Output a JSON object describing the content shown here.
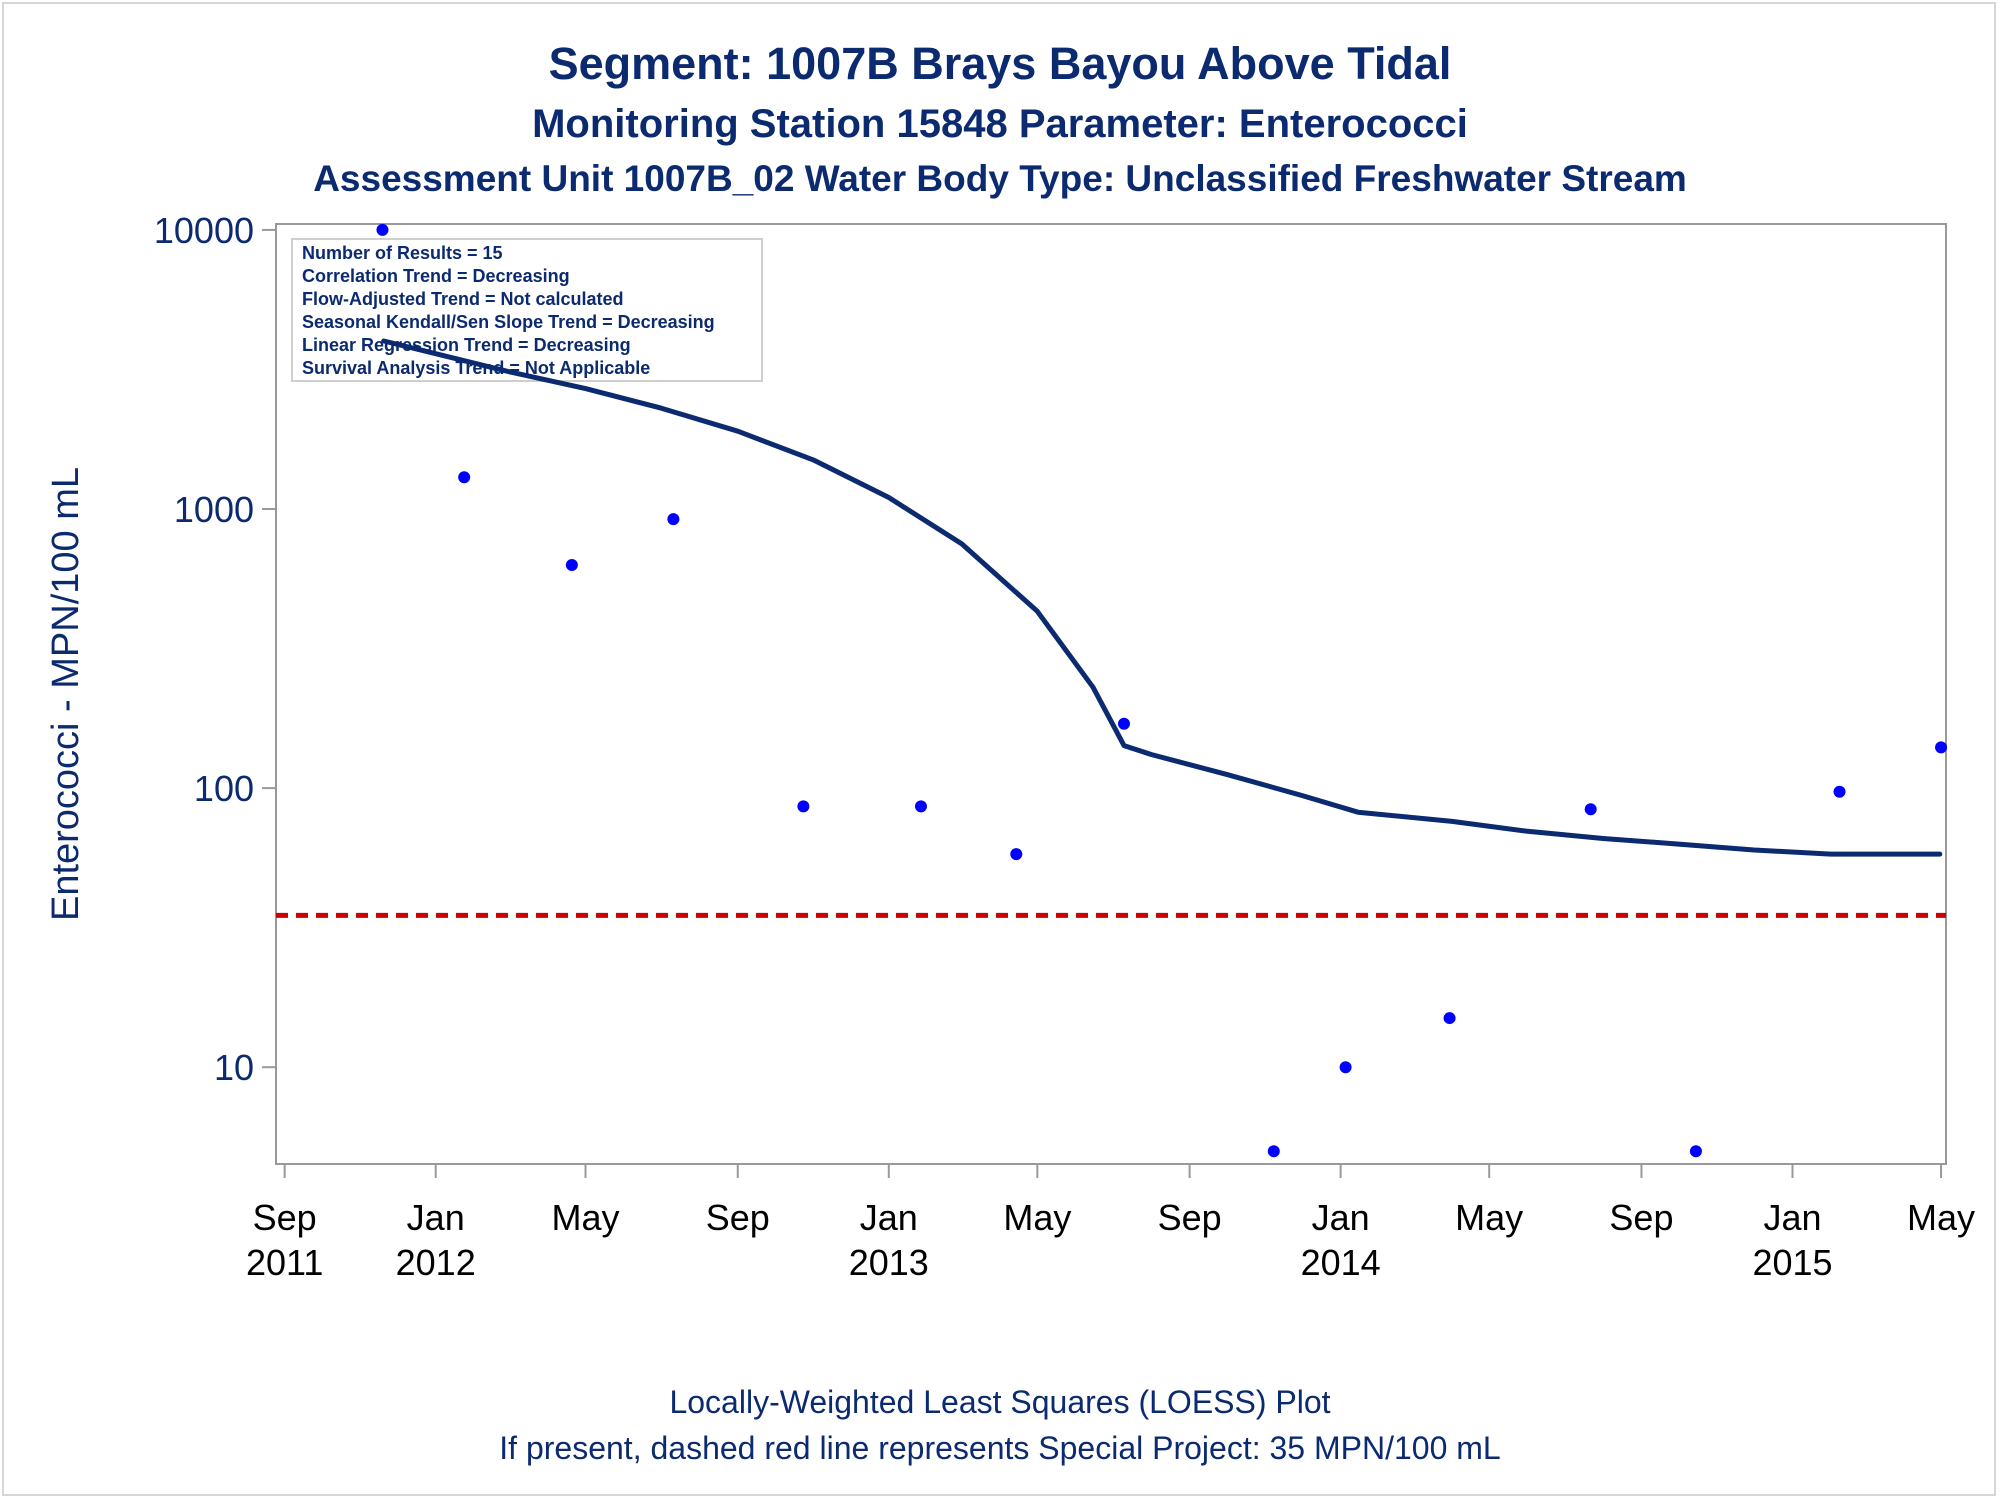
{
  "colors": {
    "title": "#0b2a6f",
    "axis": "#999999",
    "loess": "#0b2a6f",
    "points": "#0000ff",
    "threshold": "#cc0000"
  },
  "chart_data": {
    "type": "scatter",
    "title": "Segment: 1007B  Brays Bayou Above Tidal",
    "subtitle": "Monitoring Station 15848 Parameter: Enterococci",
    "subtitle2": "Assessment Unit 1007B_02   Water Body Type: Unclassified Freshwater Stream",
    "xlabel": "",
    "ylabel": "Enterococci - MPN/100 mL",
    "yscale": "log",
    "ylim": [
      4.5,
      10500
    ],
    "xlim": [
      "2011-08-25",
      "2015-05-05"
    ],
    "y_ticks": [
      {
        "value": 10,
        "label": "10"
      },
      {
        "value": 100,
        "label": "100"
      },
      {
        "value": 1000,
        "label": "1000"
      },
      {
        "value": 10000,
        "label": "10000"
      }
    ],
    "x_ticks": [
      {
        "date": "2011-09-01",
        "month": "Sep",
        "year": "2011"
      },
      {
        "date": "2012-01-01",
        "month": "Jan",
        "year": "2012"
      },
      {
        "date": "2012-05-01",
        "month": "May",
        "year": ""
      },
      {
        "date": "2012-09-01",
        "month": "Sep",
        "year": ""
      },
      {
        "date": "2013-01-01",
        "month": "Jan",
        "year": "2013"
      },
      {
        "date": "2013-05-01",
        "month": "May",
        "year": ""
      },
      {
        "date": "2013-09-01",
        "month": "Sep",
        "year": ""
      },
      {
        "date": "2014-01-01",
        "month": "Jan",
        "year": "2014"
      },
      {
        "date": "2014-05-01",
        "month": "May",
        "year": ""
      },
      {
        "date": "2014-09-01",
        "month": "Sep",
        "year": ""
      },
      {
        "date": "2015-01-01",
        "month": "Jan",
        "year": "2015"
      },
      {
        "date": "2015-05-01",
        "month": "May",
        "year": ""
      }
    ],
    "series": [
      {
        "name": "",
        "kind": "points",
        "points": [
          {
            "x": "2011-11-19",
            "y": 10000
          },
          {
            "x": "2012-01-24",
            "y": 1300
          },
          {
            "x": "2012-04-20",
            "y": 630
          },
          {
            "x": "2012-07-11",
            "y": 920
          },
          {
            "x": "2012-10-24",
            "y": 86
          },
          {
            "x": "2013-01-27",
            "y": 86
          },
          {
            "x": "2013-04-14",
            "y": 58
          },
          {
            "x": "2013-07-10",
            "y": 170
          },
          {
            "x": "2013-11-08",
            "y": 5
          },
          {
            "x": "2014-01-05",
            "y": 10
          },
          {
            "x": "2014-03-30",
            "y": 15
          },
          {
            "x": "2014-07-22",
            "y": 84
          },
          {
            "x": "2014-10-15",
            "y": 5
          },
          {
            "x": "2015-02-08",
            "y": 97
          },
          {
            "x": "2015-05-01",
            "y": 140
          }
        ]
      },
      {
        "name": "",
        "kind": "loess",
        "points": [
          {
            "x": "2011-11-20",
            "y": 4000
          },
          {
            "x": "2012-01-01",
            "y": 3600
          },
          {
            "x": "2012-03-01",
            "y": 3100
          },
          {
            "x": "2012-05-01",
            "y": 2700
          },
          {
            "x": "2012-07-01",
            "y": 2300
          },
          {
            "x": "2012-09-01",
            "y": 1900
          },
          {
            "x": "2012-11-01",
            "y": 1500
          },
          {
            "x": "2013-01-01",
            "y": 1100
          },
          {
            "x": "2013-03-01",
            "y": 750
          },
          {
            "x": "2013-05-01",
            "y": 430
          },
          {
            "x": "2013-06-15",
            "y": 230
          },
          {
            "x": "2013-07-10",
            "y": 142
          },
          {
            "x": "2013-08-01",
            "y": 132
          },
          {
            "x": "2013-10-01",
            "y": 112
          },
          {
            "x": "2013-12-01",
            "y": 94
          },
          {
            "x": "2014-01-15",
            "y": 82
          },
          {
            "x": "2014-04-01",
            "y": 76
          },
          {
            "x": "2014-06-01",
            "y": 70
          },
          {
            "x": "2014-08-01",
            "y": 66
          },
          {
            "x": "2014-10-01",
            "y": 63
          },
          {
            "x": "2014-12-01",
            "y": 60
          },
          {
            "x": "2015-02-01",
            "y": 58
          },
          {
            "x": "2015-04-30",
            "y": 58
          }
        ]
      }
    ],
    "reference_line": {
      "y": 35,
      "style": "dashed"
    },
    "legend": {
      "position": "top-left",
      "lines": [
        "Number of Results = 15",
        "Correlation Trend = Decreasing",
        "Flow-Adjusted Trend = Not calculated",
        "Seasonal Kendall/Sen Slope Trend = Decreasing",
        "Linear Regression Trend = Decreasing",
        "Survival Analysis Trend = Not Applicable"
      ]
    },
    "footnotes": [
      "Locally-Weighted Least Squares (LOESS) Plot",
      "If present, dashed red line represents Special Project: 35 MPN/100 mL"
    ]
  }
}
